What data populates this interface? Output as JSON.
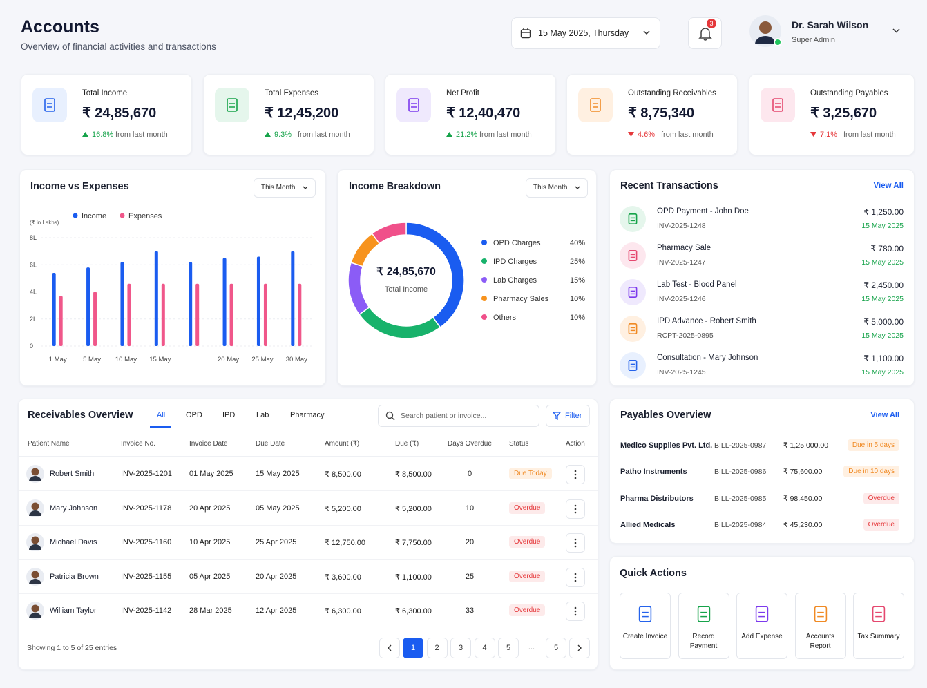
{
  "header": {
    "title": "Accounts",
    "subtitle": "Overview of financial activities and transactions",
    "date": "15 May 2025, Thursday",
    "notifications": 3,
    "user": {
      "name": "Dr. Sarah Wilson",
      "role": "Super Admin"
    }
  },
  "kpis": [
    {
      "label": "Total Income",
      "value": "₹ 24,85,670",
      "change": "16.8%",
      "change_text": "from last month",
      "trend": "up",
      "color": "#2563eb",
      "bg": "#e8f0fe"
    },
    {
      "label": "Total Expenses",
      "value": "₹ 12,45,200",
      "change": "9.3%",
      "change_text": "from last month",
      "trend": "up",
      "color": "#16a34a",
      "bg": "#e5f6ec"
    },
    {
      "label": "Net Profit",
      "value": "₹ 12,40,470",
      "change": "21.2%",
      "change_text": "from last month",
      "trend": "up",
      "color": "#7c3aed",
      "bg": "#efe9fd"
    },
    {
      "label": "Outstanding Receivables",
      "value": "₹ 8,75,340",
      "change": "4.6%",
      "change_text": "from last month",
      "trend": "down",
      "color": "#f08a24",
      "bg": "#fff0e1"
    },
    {
      "label": "Outstanding Payables",
      "value": "₹ 3,25,670",
      "change": "7.1%",
      "change_text": "from last month",
      "trend": "down",
      "color": "#e5486f",
      "bg": "#fde7ee"
    }
  ],
  "chart_data": [
    {
      "type": "bar",
      "title": "Income vs Expenses",
      "filter": "This Month",
      "y_label": "(₹ in Lakhs)",
      "categories": [
        "1 May",
        "5 May",
        "10 May",
        "15 May",
        null,
        "20 May",
        "25 May",
        "30 May"
      ],
      "series": [
        {
          "name": "Income",
          "color": "#1a5cf0",
          "values": [
            5.4,
            5.8,
            6.2,
            7.0,
            6.2,
            6.5,
            6.6,
            7.0
          ]
        },
        {
          "name": "Expenses",
          "color": "#f0578a",
          "values": [
            3.7,
            4.0,
            4.6,
            4.6,
            4.6,
            4.6,
            4.6,
            4.6
          ]
        }
      ],
      "ylim": [
        0,
        8
      ],
      "yticks": [
        0,
        {
          "value": 2,
          "label": "2L"
        },
        {
          "value": 4,
          "label": "4L"
        },
        {
          "value": 6,
          "label": "6L"
        },
        {
          "value": 8,
          "label": "8L"
        }
      ],
      "grid": true
    },
    {
      "type": "pie",
      "title": "Income Breakdown",
      "filter": "This Month",
      "center_value": "₹ 24,85,670",
      "center_label": "Total Income",
      "categories": [
        "OPD Charges",
        "IPD Charges",
        "Lab Charges",
        "Pharmacy Sales",
        "Others"
      ],
      "values": [
        40,
        25,
        15,
        10,
        10
      ],
      "value_labels": [
        "40%",
        "25%",
        "15%",
        "10%",
        "10%"
      ],
      "colors": [
        "#1a5cf0",
        "#18b26b",
        "#8b5cf6",
        "#f7931e",
        "#f0508a"
      ]
    }
  ],
  "recent_transactions": {
    "title": "Recent Transactions",
    "view_all": "View All",
    "items": [
      {
        "title": "OPD Payment - John Doe",
        "id": "INV-2025-1248",
        "amount": "₹ 1,250.00",
        "date": "15 May 2025",
        "color": "#16a34a",
        "bg": "#e5f6ec"
      },
      {
        "title": "Pharmacy Sale",
        "id": "INV-2025-1247",
        "amount": "₹ 780.00",
        "date": "15 May 2025",
        "color": "#e5486f",
        "bg": "#fde7ee"
      },
      {
        "title": "Lab Test - Blood Panel",
        "id": "INV-2025-1246",
        "amount": "₹ 2,450.00",
        "date": "15 May 2025",
        "color": "#7c3aed",
        "bg": "#efe9fd"
      },
      {
        "title": "IPD Advance - Robert Smith",
        "id": "RCPT-2025-0895",
        "amount": "₹ 5,000.00",
        "date": "15 May 2025",
        "color": "#f08a24",
        "bg": "#fff0e1"
      },
      {
        "title": "Consultation - Mary Johnson",
        "id": "INV-2025-1245",
        "amount": "₹ 1,100.00",
        "date": "15 May 2025",
        "color": "#2563eb",
        "bg": "#e8f0fe"
      }
    ]
  },
  "receivables": {
    "title": "Receivables Overview",
    "tabs": [
      "All",
      "OPD",
      "IPD",
      "Lab",
      "Pharmacy"
    ],
    "search_placeholder": "Search patient or invoice...",
    "filter": "Filter",
    "columns": [
      "Patient Name",
      "Invoice No.",
      "Invoice Date",
      "Due Date",
      "Amount (₹)",
      "Due (₹)",
      "Days Overdue",
      "Status",
      "Action"
    ],
    "rows": [
      {
        "name": "Robert Smith",
        "invoice": "INV-2025-1201",
        "invoice_date": "01 May 2025",
        "due_date": "15 May 2025",
        "amount": "₹ 8,500.00",
        "due": "₹ 8,500.00",
        "days": 0,
        "status": "Due Today",
        "status_color": "#f08a24",
        "status_bg": "#fff0e1"
      },
      {
        "name": "Mary Johnson",
        "invoice": "INV-2025-1178",
        "invoice_date": "20 Apr 2025",
        "due_date": "05 May 2025",
        "amount": "₹ 5,200.00",
        "due": "₹ 5,200.00",
        "days": 10,
        "status": "Overdue",
        "status_color": "#e5383b",
        "status_bg": "#fdeaea"
      },
      {
        "name": "Michael Davis",
        "invoice": "INV-2025-1160",
        "invoice_date": "10 Apr 2025",
        "due_date": "25 Apr 2025",
        "amount": "₹ 12,750.00",
        "due": "₹ 7,750.00",
        "days": 20,
        "status": "Overdue",
        "status_color": "#e5383b",
        "status_bg": "#fdeaea"
      },
      {
        "name": "Patricia Brown",
        "invoice": "INV-2025-1155",
        "invoice_date": "05 Apr 2025",
        "due_date": "20 Apr 2025",
        "amount": "₹ 3,600.00",
        "due": "₹ 1,100.00",
        "days": 25,
        "status": "Overdue",
        "status_color": "#e5383b",
        "status_bg": "#fdeaea"
      },
      {
        "name": "William Taylor",
        "invoice": "INV-2025-1142",
        "invoice_date": "28 Mar 2025",
        "due_date": "12 Apr 2025",
        "amount": "₹ 6,300.00",
        "due": "₹ 6,300.00",
        "days": 33,
        "status": "Overdue",
        "status_color": "#e5383b",
        "status_bg": "#fdeaea"
      }
    ],
    "footer": "Showing 1 to 5 of 25 entries",
    "pages": [
      "1",
      "2",
      "3",
      "4",
      "5",
      "...",
      "5"
    ]
  },
  "payables": {
    "title": "Payables Overview",
    "view_all": "View All",
    "rows": [
      {
        "name": "Medico Supplies Pvt. Ltd.",
        "bill": "BILL-2025-0987",
        "amount": "₹ 1,25,000.00",
        "status": "Due in 5 days",
        "status_color": "#f08a24",
        "status_bg": "#fff0e1"
      },
      {
        "name": "Patho Instruments",
        "bill": "BILL-2025-0986",
        "amount": "₹ 75,600.00",
        "status": "Due in 10 days",
        "status_color": "#f08a24",
        "status_bg": "#fff0e1"
      },
      {
        "name": "Pharma Distributors",
        "bill": "BILL-2025-0985",
        "amount": "₹ 98,450.00",
        "status": "Overdue",
        "status_color": "#e5383b",
        "status_bg": "#fdeaea"
      },
      {
        "name": "Allied Medicals",
        "bill": "BILL-2025-0984",
        "amount": "₹ 45,230.00",
        "status": "Overdue",
        "status_color": "#e5383b",
        "status_bg": "#fdeaea"
      }
    ]
  },
  "quick_actions": {
    "title": "Quick Actions",
    "items": [
      {
        "label": "Create Invoice",
        "color": "#2563eb"
      },
      {
        "label": "Record Payment",
        "color": "#16a34a"
      },
      {
        "label": "Add Expense",
        "color": "#7c3aed"
      },
      {
        "label": "Accounts Report",
        "color": "#f08a24"
      },
      {
        "label": "Tax Summary",
        "color": "#e5486f"
      }
    ]
  }
}
